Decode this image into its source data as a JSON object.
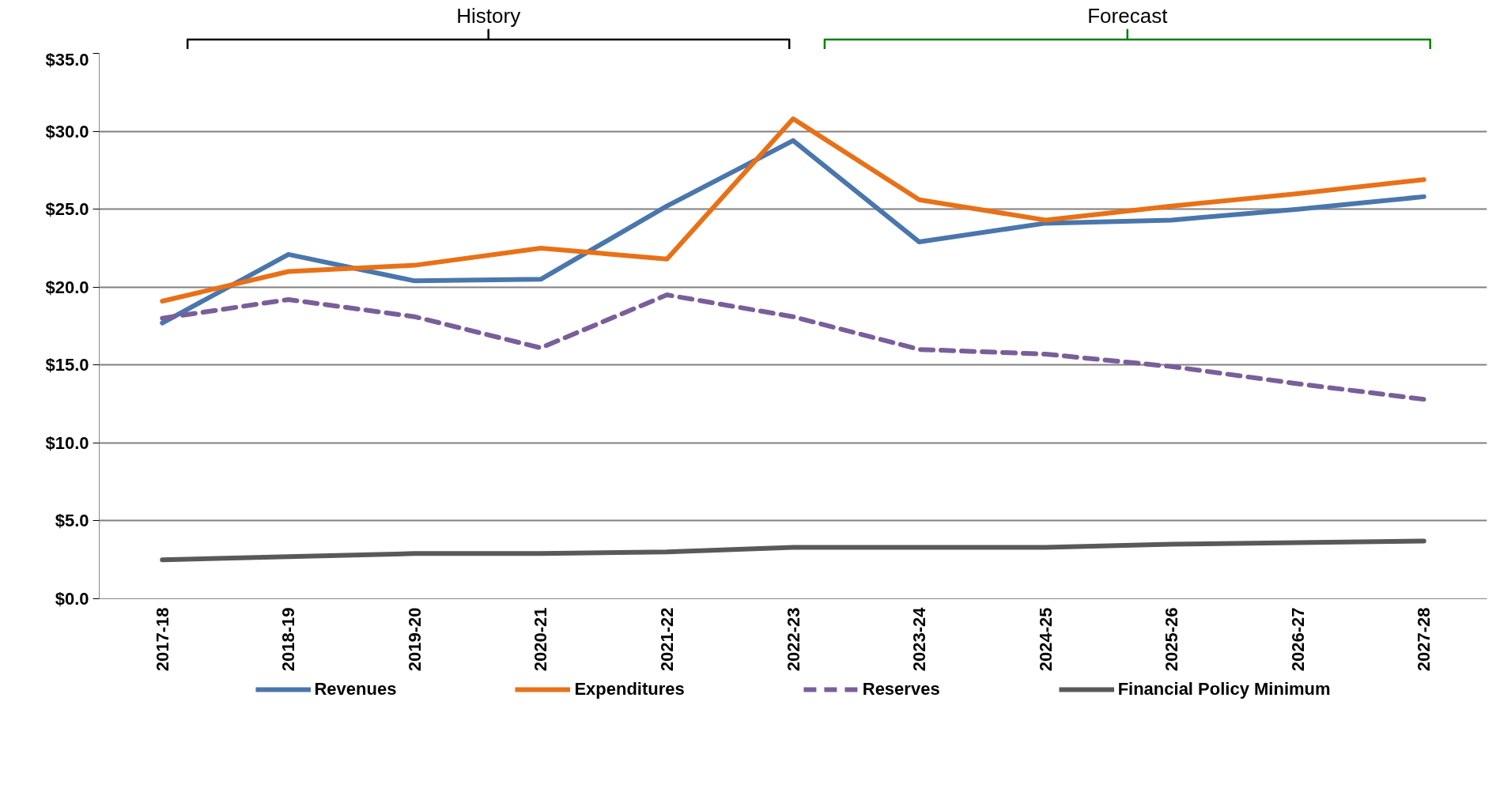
{
  "chart_data": {
    "type": "line",
    "categories": [
      "2017-18",
      "2018-19",
      "2019-20",
      "2020-21",
      "2021-22",
      "2022-23",
      "2023-24",
      "2024-25",
      "2025-26",
      "2026-27",
      "2027-28"
    ],
    "series": [
      {
        "name": "Revenues",
        "color": "#4a76ac",
        "values": [
          17.7,
          22.1,
          20.4,
          20.5,
          25.2,
          29.4,
          22.9,
          24.1,
          24.3,
          25.0,
          25.8
        ]
      },
      {
        "name": "Expenditures",
        "color": "#e87117",
        "values": [
          19.1,
          21.0,
          21.4,
          22.5,
          21.8,
          30.8,
          25.6,
          24.3,
          25.2,
          26.0,
          26.9
        ]
      },
      {
        "name": "Reserves",
        "color": "#7a5e9a",
        "line_style": "dashed",
        "values": [
          18.0,
          19.2,
          18.1,
          16.1,
          19.5,
          18.1,
          16.0,
          15.7,
          14.9,
          13.8,
          12.8
        ]
      },
      {
        "name": "Financial Policy Minimum",
        "color": "#595959",
        "values": [
          2.5,
          2.7,
          2.9,
          2.9,
          3.0,
          3.3,
          3.3,
          3.3,
          3.5,
          3.6,
          3.7
        ]
      }
    ],
    "ylim": [
      0,
      35
    ],
    "yticks": [
      {
        "value": 0,
        "label": "$0.0"
      },
      {
        "value": 5,
        "label": "$5.0"
      },
      {
        "value": 10,
        "label": "$10.0"
      },
      {
        "value": 15,
        "label": "$15.0"
      },
      {
        "value": 20,
        "label": "$20.0"
      },
      {
        "value": 25,
        "label": "$25.0"
      },
      {
        "value": 30,
        "label": "$30.0"
      },
      {
        "value": 35,
        "label": "$35.0"
      }
    ],
    "annotations": [
      "History",
      "Forecast"
    ],
    "grid": "y",
    "legend": "bottom",
    "line_style": "solid",
    "marker": "none"
  }
}
